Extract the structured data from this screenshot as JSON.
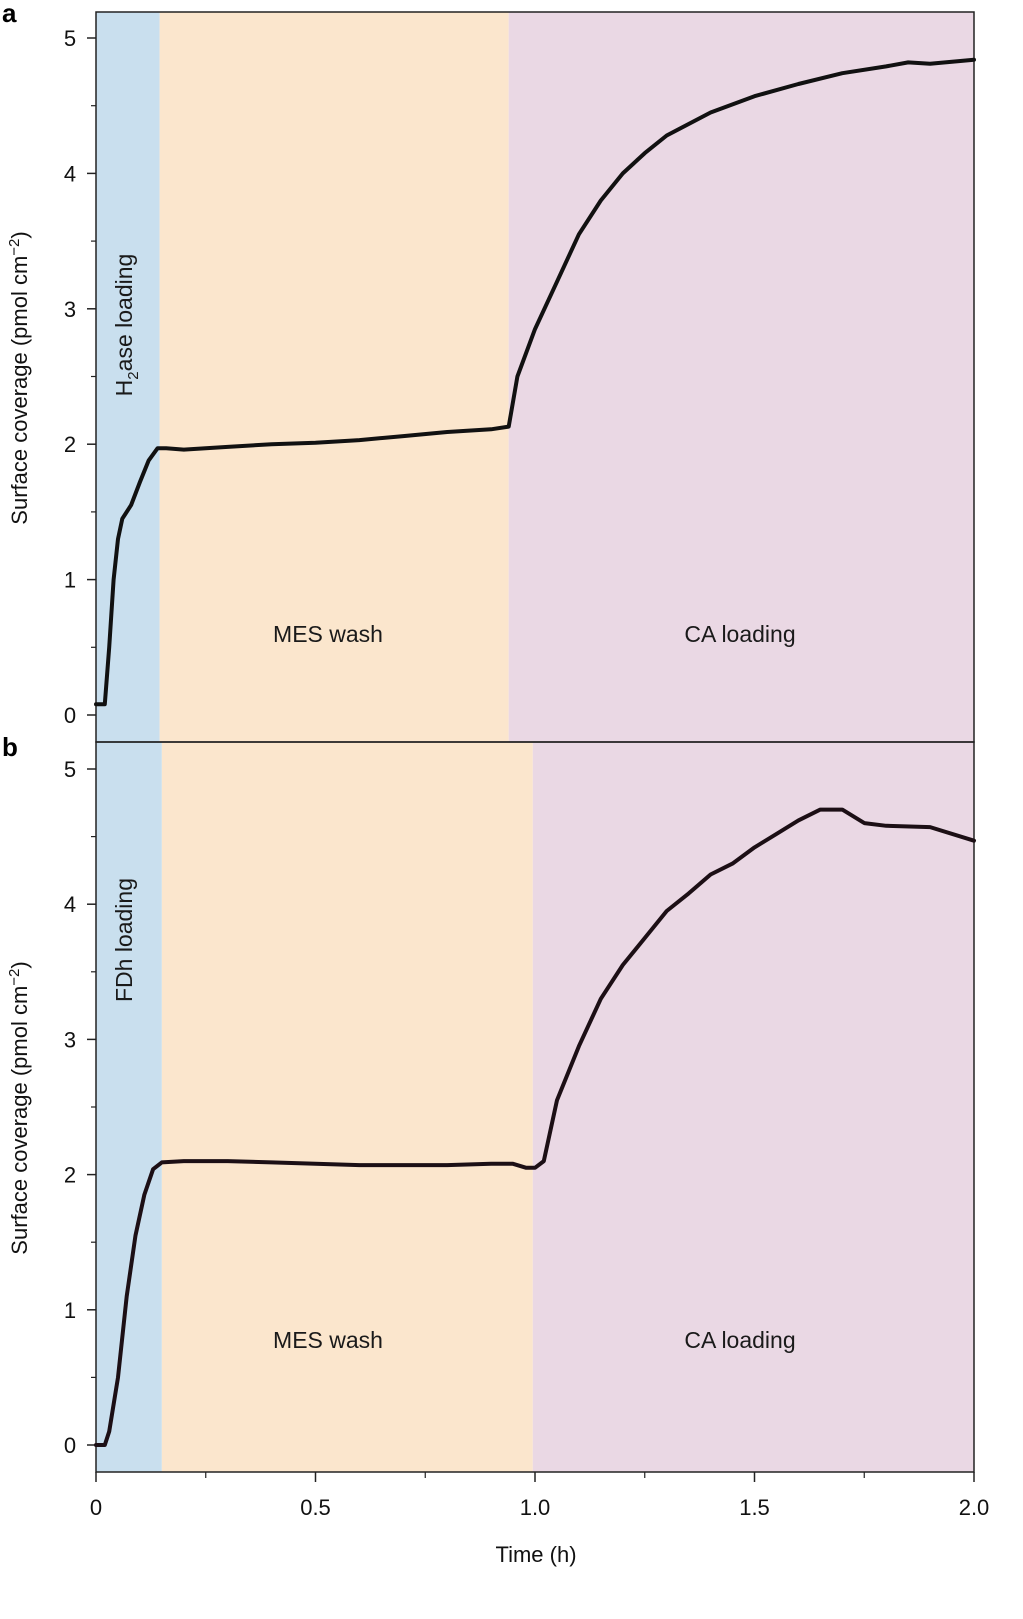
{
  "chart_data": [
    {
      "panel": "a",
      "type": "line",
      "xlabel": "Time (h)",
      "ylabel": "Surface coverage (pmol cm⁻²)",
      "xlim": [
        0,
        2.0
      ],
      "ylim": [
        -0.2,
        5.2
      ],
      "regions": [
        {
          "label": "H₂ase loading",
          "x_start": 0.0,
          "x_end": 0.145,
          "color": "#c9dfee",
          "orientation": "vertical"
        },
        {
          "label": "MES wash",
          "x_start": 0.145,
          "x_end": 0.94,
          "color": "#fbe6cd",
          "orientation": "horizontal"
        },
        {
          "label": "CA loading",
          "x_start": 0.94,
          "x_end": 2.0,
          "color": "#ead8e4",
          "orientation": "horizontal"
        }
      ],
      "series": [
        {
          "name": "surface coverage",
          "color": "#111111",
          "x": [
            0.0,
            0.02,
            0.03,
            0.04,
            0.05,
            0.06,
            0.08,
            0.1,
            0.12,
            0.14,
            0.16,
            0.2,
            0.3,
            0.4,
            0.5,
            0.6,
            0.7,
            0.8,
            0.9,
            0.94,
            0.96,
            1.0,
            1.05,
            1.1,
            1.15,
            1.2,
            1.25,
            1.3,
            1.4,
            1.5,
            1.6,
            1.7,
            1.8,
            1.85,
            1.9,
            2.0
          ],
          "y": [
            0.08,
            0.08,
            0.5,
            1.0,
            1.3,
            1.45,
            1.55,
            1.72,
            1.88,
            1.97,
            1.97,
            1.96,
            1.98,
            2.0,
            2.01,
            2.03,
            2.06,
            2.09,
            2.11,
            2.13,
            2.5,
            2.85,
            3.2,
            3.55,
            3.8,
            4.0,
            4.15,
            4.28,
            4.45,
            4.57,
            4.66,
            4.74,
            4.79,
            4.82,
            4.81,
            4.84
          ]
        }
      ]
    },
    {
      "panel": "b",
      "type": "line",
      "xlabel": "Time (h)",
      "ylabel": "Surface coverage (pmol cm⁻²)",
      "xlim": [
        0,
        2.0
      ],
      "ylim": [
        -0.2,
        5.2
      ],
      "xticks": [
        "0",
        "0.5",
        "1.0",
        "1.5",
        "2.0"
      ],
      "regions": [
        {
          "label": "FDh loading",
          "x_start": 0.0,
          "x_end": 0.15,
          "color": "#c9dfee",
          "orientation": "vertical"
        },
        {
          "label": "MES wash",
          "x_start": 0.15,
          "x_end": 0.995,
          "color": "#fbe6cd",
          "orientation": "horizontal"
        },
        {
          "label": "CA loading",
          "x_start": 0.995,
          "x_end": 2.0,
          "color": "#ead8e4",
          "orientation": "horizontal"
        }
      ],
      "series": [
        {
          "name": "surface coverage",
          "color": "#1c0f15",
          "x": [
            0.0,
            0.02,
            0.03,
            0.05,
            0.07,
            0.09,
            0.11,
            0.13,
            0.15,
            0.2,
            0.3,
            0.4,
            0.5,
            0.6,
            0.7,
            0.8,
            0.9,
            0.95,
            0.98,
            1.0,
            1.02,
            1.05,
            1.1,
            1.15,
            1.2,
            1.25,
            1.3,
            1.35,
            1.4,
            1.45,
            1.5,
            1.55,
            1.6,
            1.65,
            1.7,
            1.75,
            1.8,
            1.9,
            2.0
          ],
          "y": [
            0.0,
            0.0,
            0.1,
            0.5,
            1.1,
            1.55,
            1.85,
            2.04,
            2.09,
            2.1,
            2.1,
            2.09,
            2.08,
            2.07,
            2.07,
            2.07,
            2.08,
            2.08,
            2.05,
            2.05,
            2.1,
            2.55,
            2.95,
            3.3,
            3.55,
            3.75,
            3.95,
            4.08,
            4.22,
            4.3,
            4.42,
            4.52,
            4.62,
            4.7,
            4.7,
            4.6,
            4.58,
            4.57,
            4.47
          ]
        }
      ]
    }
  ],
  "axes": {
    "yticks": [
      "0",
      "1",
      "2",
      "3",
      "4",
      "5"
    ],
    "xticks": [
      "0",
      "0.5",
      "1.0",
      "1.5",
      "2.0"
    ],
    "xlabel": "Time (h)"
  },
  "panels": {
    "a": {
      "letter": "a",
      "ylabel_main": "Surface coverage (pmol cm",
      "ylabel_sup": "−2",
      "ylabel_close": ")",
      "loading_main": "H",
      "loading_sub": "2",
      "loading_rest": "ase loading",
      "wash": "MES wash",
      "ca": "CA loading"
    },
    "b": {
      "letter": "b",
      "ylabel_main": "Surface coverage (pmol cm",
      "ylabel_sup": "−2",
      "ylabel_close": ")",
      "loading": "FDh loading",
      "wash": "MES wash",
      "ca": "CA loading"
    }
  }
}
